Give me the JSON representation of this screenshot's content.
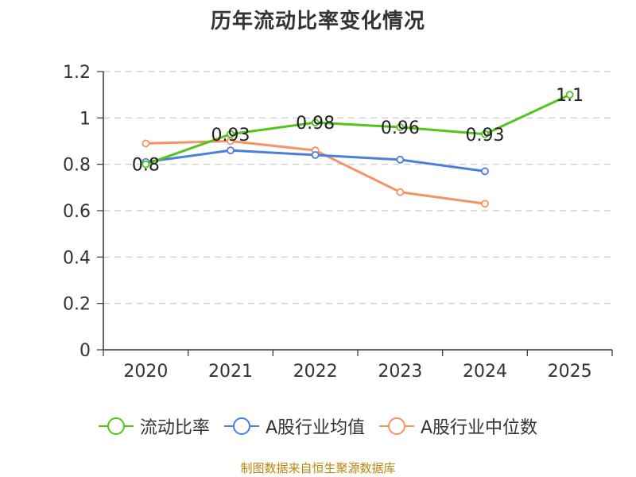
{
  "chart_data": {
    "type": "line",
    "title": "历年流动比率变化情况",
    "categories": [
      "2020",
      "2021",
      "2022",
      "2023",
      "2024",
      "2025"
    ],
    "ylim": [
      0,
      1.2
    ],
    "yticks": [
      0,
      0.2,
      0.4,
      0.6,
      0.8,
      1,
      1.2
    ],
    "ytick_labels": [
      "0",
      "0.2",
      "0.4",
      "0.6",
      "0.8",
      "1",
      "1.2"
    ],
    "grid": true,
    "legend_position": "bottom",
    "series": [
      {
        "name": "流动比率",
        "color": "#52c41a",
        "values": [
          0.8,
          0.93,
          0.98,
          0.96,
          0.93,
          1.1
        ],
        "labels": [
          "0.8",
          "0.93",
          "0.98",
          "0.96",
          "0.93",
          "1.1"
        ]
      },
      {
        "name": "A股行业均值",
        "color": "#4a7fdc",
        "values": [
          0.81,
          0.86,
          0.84,
          0.82,
          0.77,
          null
        ],
        "labels": null
      },
      {
        "name": "A股行业中位数",
        "color": "#f59364",
        "values": [
          0.89,
          0.9,
          0.86,
          0.68,
          0.63,
          null
        ],
        "labels": null
      }
    ]
  },
  "source_text": "制图数据来自恒生聚源数据库"
}
